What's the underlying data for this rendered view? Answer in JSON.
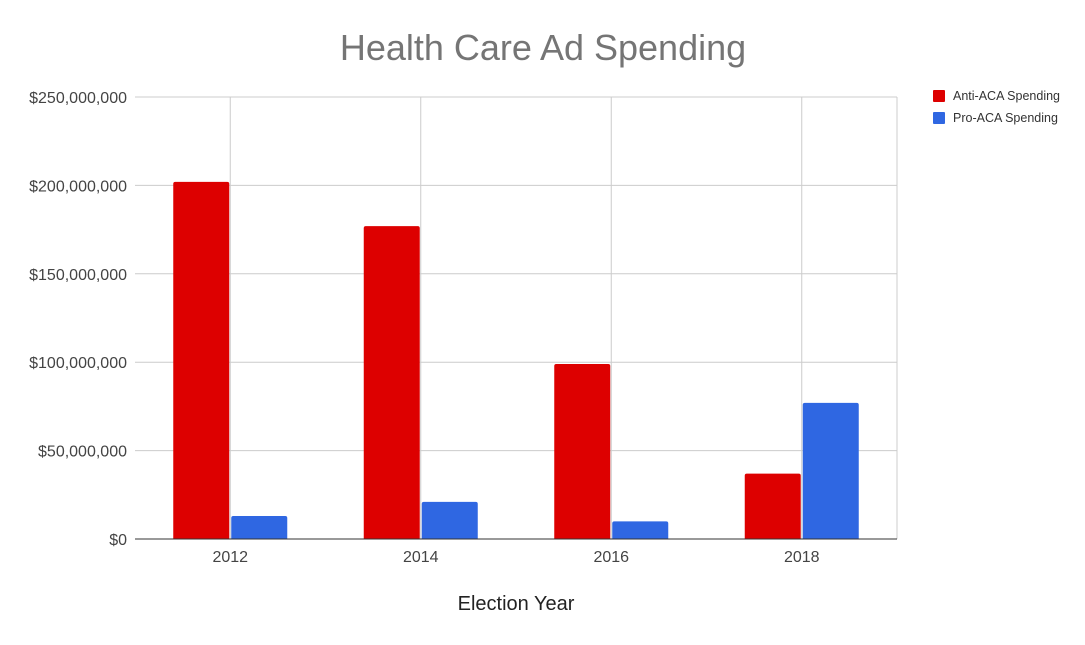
{
  "chart_data": {
    "type": "bar",
    "title": "Health Care Ad Spending",
    "xlabel": "Election Year",
    "ylabel": "",
    "categories": [
      "2012",
      "2014",
      "2016",
      "2018"
    ],
    "series": [
      {
        "name": "Anti-ACA Spending",
        "color": "#dd0000",
        "values": [
          202000000,
          177000000,
          99000000,
          37000000
        ]
      },
      {
        "name": "Pro-ACA Spending",
        "color": "#2f67e2",
        "values": [
          13000000,
          21000000,
          10000000,
          77000000
        ]
      }
    ],
    "ylim": [
      0,
      250000000
    ],
    "yticks": [
      0,
      50000000,
      100000000,
      150000000,
      200000000,
      250000000
    ],
    "ytick_labels": [
      "$0",
      "$50,000,000",
      "$100,000,000",
      "$150,000,000",
      "$200,000,000",
      "$250,000,000"
    ],
    "grid": true,
    "legend_position": "top-right"
  }
}
